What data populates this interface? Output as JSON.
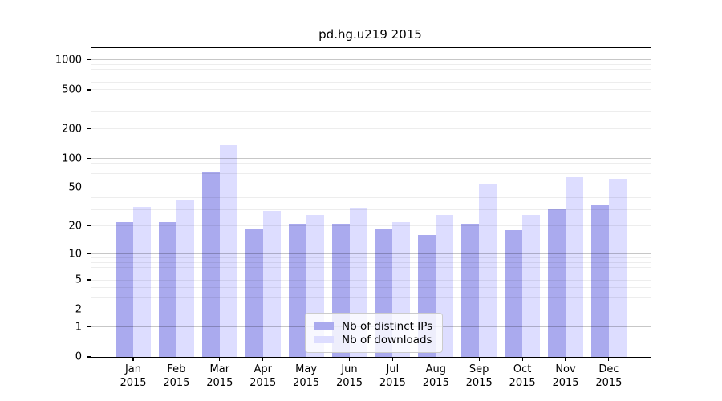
{
  "title": "pd.hg.u219 2015",
  "chart_data": {
    "type": "bar",
    "title": "pd.hg.u219 2015",
    "x_tick_months": [
      "Jan",
      "Feb",
      "Mar",
      "Apr",
      "May",
      "Jun",
      "Jul",
      "Aug",
      "Sep",
      "Oct",
      "Nov",
      "Dec"
    ],
    "x_tick_year": "2015",
    "series": [
      {
        "name": "Nb of distinct IPs",
        "color": "#aaaaee",
        "values": [
          22,
          22,
          72,
          19,
          21,
          21,
          19,
          16,
          21,
          18,
          30,
          33
        ]
      },
      {
        "name": "Nb of downloads",
        "color": "#ddddff",
        "values": [
          32,
          38,
          136,
          29,
          26,
          31,
          22,
          26,
          54,
          26,
          64,
          62
        ]
      }
    ],
    "yscale": "log1p",
    "ylim": [
      0,
      1320
    ],
    "y_ticks": [
      0,
      1,
      2,
      5,
      10,
      20,
      50,
      100,
      200,
      500,
      1000
    ],
    "y_major_gridlines": [
      1,
      10,
      100,
      1000
    ],
    "y_minor_gridlines": [
      2,
      3,
      4,
      5,
      6,
      7,
      8,
      9,
      20,
      30,
      40,
      50,
      60,
      70,
      80,
      90,
      200,
      300,
      400,
      500,
      600,
      700,
      800,
      900
    ],
    "grid": true,
    "legend_position": "lower center"
  }
}
